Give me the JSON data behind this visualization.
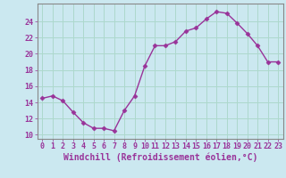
{
  "x": [
    0,
    1,
    2,
    3,
    4,
    5,
    6,
    7,
    8,
    9,
    10,
    11,
    12,
    13,
    14,
    15,
    16,
    17,
    18,
    19,
    20,
    21,
    22,
    23
  ],
  "y": [
    14.5,
    14.8,
    14.2,
    12.8,
    11.5,
    10.8,
    10.8,
    10.5,
    13.0,
    14.8,
    18.5,
    21.0,
    21.0,
    21.5,
    22.8,
    23.2,
    24.3,
    25.2,
    25.0,
    23.8,
    22.5,
    21.0,
    19.0,
    19.0
  ],
  "line_color": "#993399",
  "marker": "D",
  "markersize": 2.5,
  "linewidth": 1.0,
  "xlabel": "Windchill (Refroidissement éolien,°C)",
  "xlabel_fontsize": 7,
  "tick_fontsize": 6,
  "ytick_vals": [
    10,
    12,
    14,
    16,
    18,
    20,
    22,
    24
  ],
  "ylim": [
    9.5,
    26.2
  ],
  "xlim": [
    -0.5,
    23.5
  ],
  "bg_color": "#cbe8f0",
  "grid_color": "#add8cc",
  "spine_color": "#888888"
}
